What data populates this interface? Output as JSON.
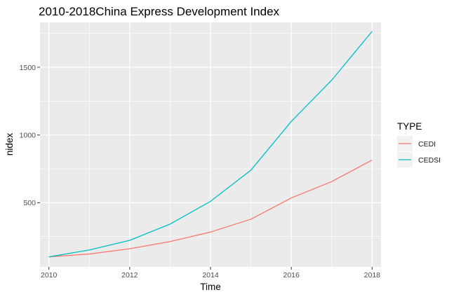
{
  "chart_data": {
    "type": "line",
    "title": "2010-2018China Express Development Index",
    "xlabel": "Time",
    "ylabel": "nidex",
    "x": [
      2010,
      2011,
      2012,
      2013,
      2014,
      2015,
      2016,
      2017,
      2018
    ],
    "x_ticks": [
      2010,
      2012,
      2014,
      2016,
      2018
    ],
    "y_ticks": [
      500,
      1000,
      1500
    ],
    "x_tick_labels": [
      "2010",
      "2012",
      "2014",
      "2016",
      "2018"
    ],
    "y_tick_labels": [
      "500",
      "1000",
      "1500"
    ],
    "xlim": [
      2009.78,
      2018.22
    ],
    "ylim": [
      26,
      1831
    ],
    "grid": true,
    "legend": {
      "title": "TYPE",
      "placement": "right"
    },
    "series": [
      {
        "name": "CEDI",
        "color": "#F8766D",
        "values": [
          100,
          121,
          160,
          213,
          283,
          378,
          535,
          656,
          815
        ]
      },
      {
        "name": "CEDSI",
        "color": "#00BFC4",
        "values": [
          100,
          151,
          222,
          342,
          510,
          740,
          1100,
          1405,
          1765
        ]
      }
    ]
  }
}
